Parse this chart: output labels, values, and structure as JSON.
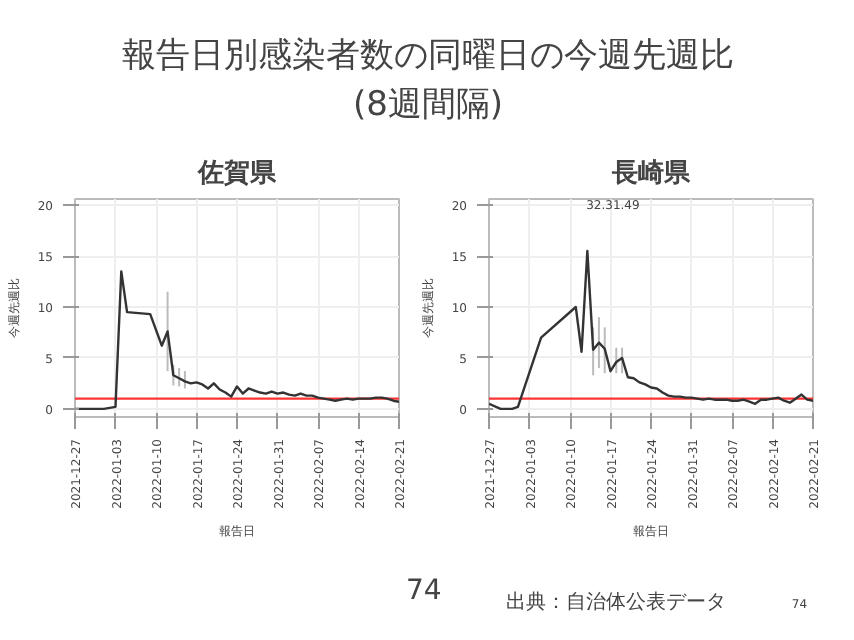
{
  "chart_data": [
    {
      "type": "other",
      "title": "報告日別感染者数の同曜日の今週先週比",
      "subtitle": "(8週間隔)",
      "annotations": [
        "74",
        "出典：自治体公表データ",
        "74"
      ]
    },
    {
      "type": "line",
      "title": "佐賀県",
      "xlabel": "報告日",
      "ylabel": "今週先週比",
      "x": [
        "2021-12-27",
        "2021-12-28",
        "2021-12-29",
        "2021-12-30",
        "2021-12-31",
        "2022-01-01",
        "2022-01-02",
        "2022-01-03",
        "2022-01-04",
        "2022-01-05",
        "2022-01-06",
        "2022-01-07",
        "2022-01-08",
        "2022-01-09",
        "2022-01-10",
        "2022-01-11",
        "2022-01-12",
        "2022-01-13",
        "2022-01-14",
        "2022-01-15",
        "2022-01-16",
        "2022-01-17",
        "2022-01-18",
        "2022-01-19",
        "2022-01-20",
        "2022-01-21",
        "2022-01-22",
        "2022-01-23",
        "2022-01-24",
        "2022-01-25",
        "2022-01-26",
        "2022-01-27",
        "2022-01-28",
        "2022-01-29",
        "2022-01-30",
        "2022-01-31",
        "2022-02-01",
        "2022-02-02",
        "2022-02-03",
        "2022-02-04",
        "2022-02-05",
        "2022-02-06",
        "2022-02-07",
        "2022-02-08",
        "2022-02-09",
        "2022-02-10",
        "2022-02-11",
        "2022-02-12",
        "2022-02-13",
        "2022-02-14",
        "2022-02-15",
        "2022-02-16",
        "2022-02-17",
        "2022-02-18",
        "2022-02-19",
        "2022-02-20",
        "2022-02-21"
      ],
      "series": [
        {
          "color": "#333333",
          "values": [
            0,
            null,
            null,
            0,
            0,
            0,
            null,
            0.2,
            13.5,
            9.5,
            null,
            null,
            null,
            9.3,
            null,
            6.2,
            7.6,
            3.3,
            3.0,
            2.7,
            2.5,
            2.6,
            2.4,
            2.0,
            2.5,
            1.9,
            1.6,
            1.2,
            2.2,
            1.5,
            2.0,
            1.8,
            1.6,
            1.5,
            1.7,
            1.5,
            1.6,
            1.4,
            1.3,
            1.5,
            1.3,
            1.3,
            1.1,
            1.0,
            0.9,
            0.8,
            0.9,
            1.0,
            0.9,
            1.0,
            1.0,
            1.0,
            1.1,
            1.1,
            1.0,
            0.8,
            0.7
          ],
          "errors": [
            null,
            null,
            null,
            null,
            null,
            null,
            null,
            null,
            null,
            null,
            null,
            null,
            null,
            null,
            null,
            null,
            [
              3.7,
              11.5
            ],
            [
              2.3,
              4.3
            ],
            [
              2.2,
              4.0
            ],
            [
              2.0,
              3.7
            ],
            null,
            null,
            null,
            null,
            null,
            null,
            null,
            null,
            null,
            null,
            null,
            null,
            null,
            null,
            null,
            null,
            null,
            null,
            null,
            null,
            null,
            null,
            null,
            null,
            null,
            null,
            null,
            null,
            null,
            null,
            null,
            null,
            null,
            null,
            null,
            null,
            null
          ]
        }
      ],
      "xlim": [
        "2021-12-27",
        "2022-02-21"
      ],
      "xticks": [
        "2021-12-27",
        "2022-01-03",
        "2022-01-10",
        "2022-01-17",
        "2022-01-24",
        "2022-01-31",
        "2022-02-07",
        "2022-02-14",
        "2022-02-21"
      ],
      "ylim": [
        -0.8,
        20.6
      ],
      "yticks": [
        0,
        5,
        10,
        15,
        20
      ],
      "grid": true,
      "line_style": "solid",
      "marker": "none",
      "ref_lines": [
        {
          "axis": "y",
          "value": 1,
          "color": "#ff3333"
        }
      ]
    },
    {
      "type": "line",
      "title": "長崎県",
      "xlabel": "報告日",
      "ylabel": "今週先週比",
      "annotations": [
        "32.31.49"
      ],
      "x": [
        "2021-12-27",
        "2021-12-28",
        "2021-12-29",
        "2021-12-30",
        "2021-12-31",
        "2022-01-01",
        "2022-01-02",
        "2022-01-03",
        "2022-01-04",
        "2022-01-05",
        "2022-01-06",
        "2022-01-07",
        "2022-01-08",
        "2022-01-09",
        "2022-01-10",
        "2022-01-11",
        "2022-01-12",
        "2022-01-13",
        "2022-01-14",
        "2022-01-15",
        "2022-01-16",
        "2022-01-17",
        "2022-01-18",
        "2022-01-19",
        "2022-01-20",
        "2022-01-21",
        "2022-01-22",
        "2022-01-23",
        "2022-01-24",
        "2022-01-25",
        "2022-01-26",
        "2022-01-27",
        "2022-01-28",
        "2022-01-29",
        "2022-01-30",
        "2022-01-31",
        "2022-02-01",
        "2022-02-02",
        "2022-02-03",
        "2022-02-04",
        "2022-02-05",
        "2022-02-06",
        "2022-02-07",
        "2022-02-08",
        "2022-02-09",
        "2022-02-10",
        "2022-02-11",
        "2022-02-12",
        "2022-02-13",
        "2022-02-14",
        "2022-02-15",
        "2022-02-16",
        "2022-02-17",
        "2022-02-18",
        "2022-02-19",
        "2022-02-20",
        "2022-02-21"
      ],
      "series": [
        {
          "color": "#333333",
          "values": [
            0.5,
            null,
            0,
            0,
            0,
            0.2,
            null,
            null,
            null,
            7,
            null,
            null,
            null,
            null,
            null,
            10,
            5.6,
            15.5,
            5.8,
            6.5,
            5.9,
            3.7,
            4.6,
            5.0,
            3.1,
            3.0,
            2.6,
            2.4,
            2.1,
            2.0,
            1.6,
            1.3,
            1.2,
            1.2,
            1.1,
            1.1,
            1.0,
            0.9,
            1.0,
            0.9,
            0.9,
            0.9,
            0.8,
            0.8,
            0.9,
            0.7,
            0.5,
            0.9,
            0.9,
            1.0,
            1.1,
            0.8,
            0.6,
            1.0,
            1.4,
            0.9,
            0.8
          ],
          "errors": [
            null,
            null,
            null,
            null,
            null,
            null,
            null,
            null,
            null,
            null,
            null,
            null,
            null,
            null,
            null,
            null,
            null,
            null,
            [
              3.3,
              8
            ],
            [
              4,
              9
            ],
            [
              3.5,
              8
            ],
            null,
            [
              3.5,
              6
            ],
            [
              3.5,
              6
            ],
            null,
            null,
            null,
            null,
            null,
            null,
            null,
            null,
            null,
            null,
            null,
            null,
            null,
            null,
            null,
            null,
            null,
            null,
            null,
            null,
            null,
            null,
            null,
            null,
            null,
            null,
            null,
            null,
            null,
            null,
            null,
            null,
            null
          ]
        }
      ],
      "xlim": [
        "2021-12-27",
        "2022-02-21"
      ],
      "xticks": [
        "2021-12-27",
        "2022-01-03",
        "2022-01-10",
        "2022-01-17",
        "2022-01-24",
        "2022-01-31",
        "2022-02-07",
        "2022-02-14",
        "2022-02-21"
      ],
      "ylim": [
        -0.8,
        20.6
      ],
      "yticks": [
        0,
        5,
        10,
        15,
        20
      ],
      "grid": true,
      "line_style": "solid",
      "marker": "none",
      "ref_lines": [
        {
          "axis": "y",
          "value": 1,
          "color": "#ff3333"
        }
      ]
    }
  ]
}
